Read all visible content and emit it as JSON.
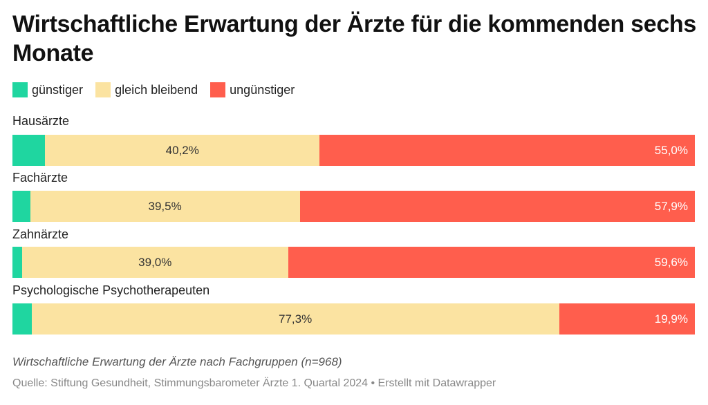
{
  "title": "Wirtschaftliche Erwartung der Ärzte für die kommenden sechs Monate",
  "legend": [
    {
      "label": "günstiger",
      "color": "#1fd6a0"
    },
    {
      "label": "gleich bleibend",
      "color": "#fbe3a1"
    },
    {
      "label": "ungünstiger",
      "color": "#ff5e4d"
    }
  ],
  "subtitle": "Wirtschaftliche Erwartung der Ärzte nach Fachgruppen (n=968)",
  "source": "Quelle: Stiftung Gesundheit, Stimmungsbarometer Ärzte 1. Quartal 2024 • Erstellt mit Datawrapper",
  "chart_data": {
    "type": "bar",
    "orientation": "horizontal",
    "stacked": true,
    "title": "Wirtschaftliche Erwartung der Ärzte für die kommenden sechs Monate",
    "categories": [
      "Hausärzte",
      "Fachärzte",
      "Zahnärzte",
      "Psychologische Psychotherapeuten"
    ],
    "series": [
      {
        "name": "günstiger",
        "values": [
          4.8,
          2.6,
          1.4,
          2.8
        ]
      },
      {
        "name": "gleich bleibend",
        "values": [
          40.2,
          39.5,
          39.0,
          77.3
        ],
        "labels": [
          "40,2%",
          "39,5%",
          "39,0%",
          "77,3%"
        ]
      },
      {
        "name": "ungünstiger",
        "values": [
          55.0,
          57.9,
          59.6,
          19.9
        ],
        "labels": [
          "55,0%",
          "57,9%",
          "59,6%",
          "19,9%"
        ]
      }
    ],
    "xlim": [
      0,
      100
    ],
    "unit": "%",
    "legend_position": "top-left"
  }
}
